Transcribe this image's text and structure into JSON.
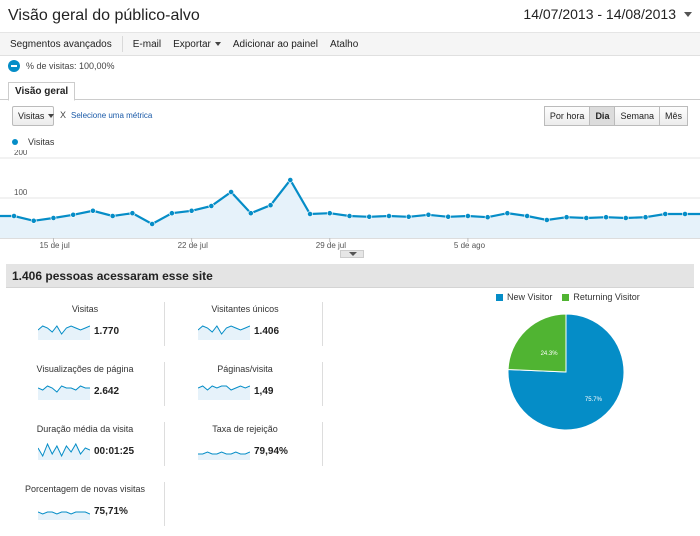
{
  "header": {
    "title": "Visão geral do público-alvo",
    "date_range": "14/07/2013 - 14/08/2013"
  },
  "toolbar": {
    "advanced_segments": "Segmentos avançados",
    "email": "E-mail",
    "export": "Exportar",
    "add_to_dashboard": "Adicionar ao painel",
    "shortcut": "Atalho"
  },
  "segment": {
    "label": "% de visitas: 100,00%"
  },
  "tabs": {
    "overview": "Visão geral"
  },
  "controls": {
    "metric": "Visitas",
    "remove": "X",
    "select_metric": "Selecione uma métrica",
    "periods": [
      "Por hora",
      "Dia",
      "Semana",
      "Mês"
    ]
  },
  "legend": {
    "series": "Visitas"
  },
  "colors": {
    "accent": "#058dc7",
    "returning": "#50b432",
    "fill": "#e6f2fa"
  },
  "chart_data": {
    "type": "area",
    "y_ticks": [
      "200",
      "100"
    ],
    "ylim": [
      0,
      200
    ],
    "x_labels": [
      "15 de jul",
      "22 de jul",
      "29 de jul",
      "5 de ago"
    ],
    "series": [
      {
        "name": "Visitas",
        "values": [
          55,
          43,
          50,
          58,
          68,
          55,
          62,
          35,
          62,
          68,
          80,
          115,
          62,
          82,
          145,
          60,
          62,
          55,
          53,
          55,
          53,
          58,
          53,
          55,
          52,
          62,
          55,
          45,
          52,
          50,
          52,
          50,
          52,
          60,
          60
        ]
      }
    ]
  },
  "summary": {
    "title": "1.406 pessoas acessaram esse site"
  },
  "metrics": [
    {
      "label": "Visitas",
      "value": "1.770"
    },
    {
      "label": "Visitantes únicos",
      "value": "1.406"
    },
    {
      "label": "Visualizações de página",
      "value": "2.642"
    },
    {
      "label": "Páginas/visita",
      "value": "1,49"
    },
    {
      "label": "Duração média da visita",
      "value": "00:01:25"
    },
    {
      "label": "Taxa de rejeição",
      "value": "79,94%"
    },
    {
      "label": "Porcentagem de novas visitas",
      "value": "75,71%"
    }
  ],
  "pie": {
    "legend": [
      "New Visitor",
      "Returning Visitor"
    ],
    "slices": [
      {
        "name": "New Visitor",
        "value": 75.7,
        "label": "75.7%"
      },
      {
        "name": "Returning Visitor",
        "value": 24.3,
        "label": "24.3%"
      }
    ]
  }
}
